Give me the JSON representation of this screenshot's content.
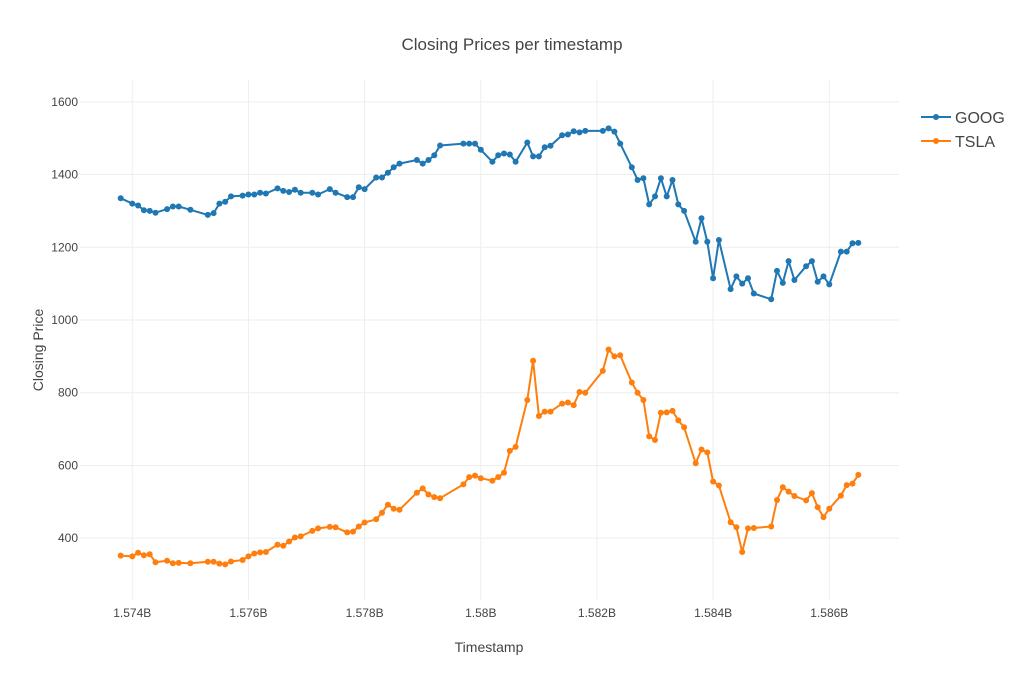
{
  "chart_data": {
    "type": "line",
    "title": "Closing Prices per timestamp",
    "xlabel": "Timestamp",
    "ylabel": "Closing Price",
    "xlim": [
      1.5731,
      1.5872
    ],
    "ylim": [
      230,
      1660
    ],
    "x_ticks": [
      1.574,
      1.576,
      1.578,
      1.58,
      1.582,
      1.584,
      1.586
    ],
    "x_tick_labels": [
      "1.574B",
      "1.576B",
      "1.578B",
      "1.58B",
      "1.582B",
      "1.584B",
      "1.586B"
    ],
    "y_ticks": [
      400,
      600,
      800,
      1000,
      1200,
      1400,
      1600
    ],
    "y_tick_labels": [
      "400",
      "600",
      "800",
      "1000",
      "1200",
      "1400",
      "1600"
    ],
    "grid": true,
    "legend_position": "top-right",
    "x_unit_note": "x values in billions (×1e9)",
    "series": [
      {
        "name": "GOOG",
        "color": "#1f77b4",
        "x": [
          1.5738,
          1.574,
          1.5741,
          1.5742,
          1.5743,
          1.5744,
          1.5746,
          1.5747,
          1.5748,
          1.575,
          1.5753,
          1.5754,
          1.5755,
          1.5756,
          1.5757,
          1.5759,
          1.576,
          1.5761,
          1.5762,
          1.5763,
          1.5765,
          1.5766,
          1.5767,
          1.5768,
          1.5769,
          1.5771,
          1.5772,
          1.5774,
          1.5775,
          1.5777,
          1.5778,
          1.5779,
          1.578,
          1.5782,
          1.5783,
          1.5784,
          1.5785,
          1.5786,
          1.5789,
          1.579,
          1.5791,
          1.5792,
          1.5793,
          1.5797,
          1.5798,
          1.5799,
          1.58,
          1.5802,
          1.5803,
          1.5804,
          1.5805,
          1.5806,
          1.5808,
          1.5809,
          1.581,
          1.5811,
          1.5812,
          1.5814,
          1.5815,
          1.5816,
          1.5817,
          1.5818,
          1.5821,
          1.5822,
          1.5823,
          1.5824,
          1.5826,
          1.5827,
          1.5828,
          1.5829,
          1.583,
          1.5831,
          1.5832,
          1.5833,
          1.5834,
          1.5835,
          1.5837,
          1.5838,
          1.5839,
          1.584,
          1.5841,
          1.5843,
          1.5844,
          1.5845,
          1.5846,
          1.5847,
          1.585,
          1.5851,
          1.5852,
          1.5853,
          1.5854,
          1.5856,
          1.5857,
          1.5858,
          1.5859,
          1.586,
          1.5862,
          1.5863,
          1.5864,
          1.5865
        ],
        "values": [
          1335,
          1320,
          1315,
          1302,
          1300,
          1295,
          1305,
          1312,
          1312,
          1303,
          1289,
          1294,
          1320,
          1325,
          1340,
          1342,
          1345,
          1345,
          1350,
          1348,
          1362,
          1355,
          1352,
          1358,
          1350,
          1350,
          1345,
          1360,
          1350,
          1338,
          1338,
          1365,
          1360,
          1392,
          1392,
          1405,
          1420,
          1430,
          1440,
          1430,
          1440,
          1453,
          1480,
          1485,
          1485,
          1485,
          1468,
          1435,
          1453,
          1458,
          1455,
          1435,
          1488,
          1450,
          1450,
          1475,
          1479,
          1508,
          1510,
          1519,
          1516,
          1520,
          1520,
          1527,
          1518,
          1485,
          1420,
          1385,
          1390,
          1318,
          1340,
          1390,
          1340,
          1385,
          1318,
          1300,
          1215,
          1280,
          1215,
          1115,
          1220,
          1085,
          1120,
          1100,
          1115,
          1073,
          1057,
          1135,
          1102,
          1162,
          1110,
          1148,
          1162,
          1105,
          1120,
          1098,
          1188,
          1188,
          1211,
          1212
        ]
      },
      {
        "name": "TSLA",
        "color": "#ff7f0e",
        "x": [
          1.5738,
          1.574,
          1.5741,
          1.5742,
          1.5743,
          1.5744,
          1.5746,
          1.5747,
          1.5748,
          1.575,
          1.5753,
          1.5754,
          1.5755,
          1.5756,
          1.5757,
          1.5759,
          1.576,
          1.5761,
          1.5762,
          1.5763,
          1.5765,
          1.5766,
          1.5767,
          1.5768,
          1.5769,
          1.5771,
          1.5772,
          1.5774,
          1.5775,
          1.5777,
          1.5778,
          1.5779,
          1.578,
          1.5782,
          1.5783,
          1.5784,
          1.5785,
          1.5786,
          1.5789,
          1.579,
          1.5791,
          1.5792,
          1.5793,
          1.5797,
          1.5798,
          1.5799,
          1.58,
          1.5802,
          1.5803,
          1.5804,
          1.5805,
          1.5806,
          1.5808,
          1.5809,
          1.581,
          1.5811,
          1.5812,
          1.5814,
          1.5815,
          1.5816,
          1.5817,
          1.5818,
          1.5821,
          1.5822,
          1.5823,
          1.5824,
          1.5826,
          1.5827,
          1.5828,
          1.5829,
          1.583,
          1.5831,
          1.5832,
          1.5833,
          1.5834,
          1.5835,
          1.5837,
          1.5838,
          1.5839,
          1.584,
          1.5841,
          1.5843,
          1.5844,
          1.5845,
          1.5846,
          1.5847,
          1.585,
          1.5851,
          1.5852,
          1.5853,
          1.5854,
          1.5856,
          1.5857,
          1.5858,
          1.5859,
          1.586,
          1.5862,
          1.5863,
          1.5864,
          1.5865
        ],
        "values": [
          352,
          350,
          360,
          353,
          356,
          334,
          338,
          331,
          332,
          331,
          335,
          335,
          330,
          328,
          336,
          340,
          350,
          358,
          361,
          362,
          382,
          379,
          391,
          402,
          405,
          420,
          427,
          431,
          430,
          416,
          418,
          432,
          443,
          452,
          470,
          492,
          481,
          478,
          525,
          537,
          520,
          513,
          510,
          548,
          568,
          572,
          565,
          558,
          568,
          580,
          640,
          651,
          780,
          888,
          736,
          748,
          748,
          770,
          773,
          766,
          802,
          800,
          860,
          919,
          900,
          903,
          828,
          800,
          780,
          680,
          670,
          745,
          746,
          750,
          724,
          705,
          606,
          644,
          636,
          556,
          545,
          444,
          430,
          362,
          427,
          428,
          432,
          505,
          540,
          528,
          516,
          504,
          524,
          485,
          458,
          481,
          517,
          546,
          550,
          574
        ]
      }
    ]
  }
}
